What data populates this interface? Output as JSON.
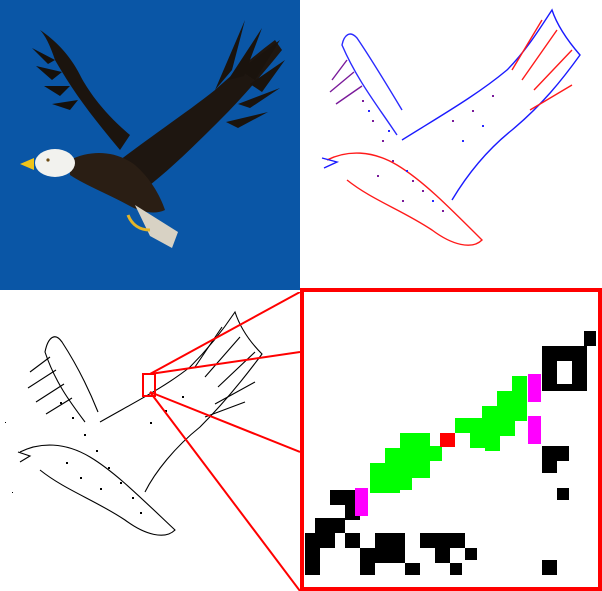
{
  "figure": {
    "panels": [
      {
        "id": "photo",
        "content": "eagle-photograph",
        "background": "#0a56a6"
      },
      {
        "id": "color-edges",
        "content": "eagle-edge-map",
        "colors": [
          "#1a1aff",
          "#ff1a1a",
          "#7a1a9a"
        ]
      },
      {
        "id": "bw-edges",
        "content": "eagle-binary-edge-map",
        "colors": [
          "#000000"
        ]
      },
      {
        "id": "zoom",
        "content": "pixel-zoom-inset",
        "colors": [
          "#000000",
          "#00ff00",
          "#ff00ff",
          "#ff0000"
        ]
      }
    ],
    "accent_color": "#ff0000"
  }
}
